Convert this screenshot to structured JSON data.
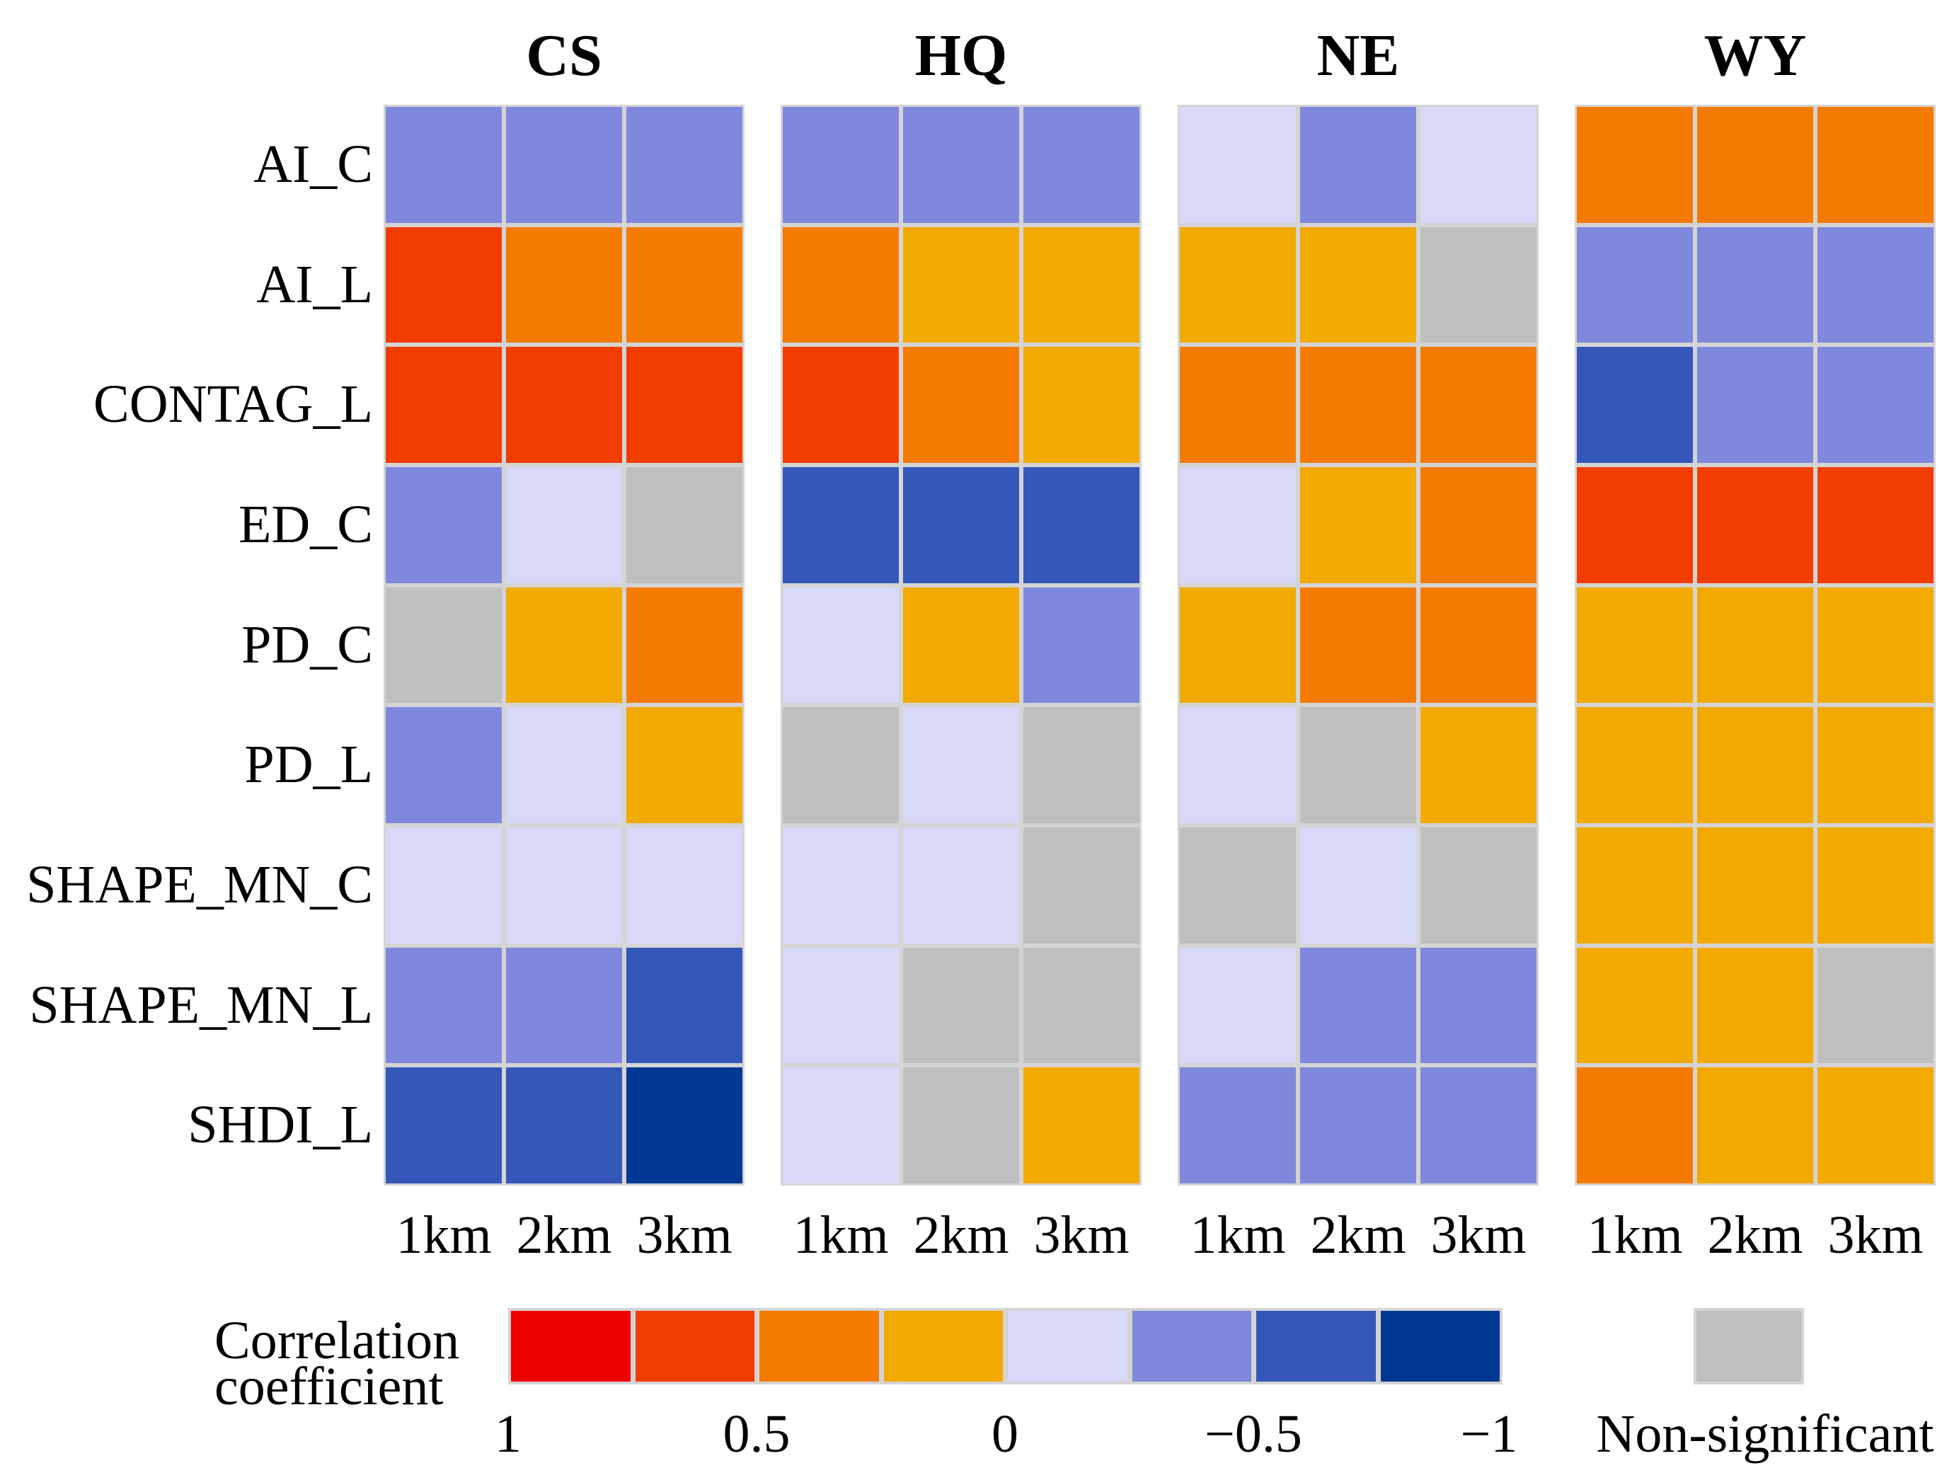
{
  "chart_data": {
    "type": "heatmap",
    "rows": [
      "AI_C",
      "AI_L",
      "CONTAG_L",
      "ED_C",
      "PD_C",
      "PD_L",
      "SHAPE_MN_C",
      "SHAPE_MN_L",
      "SHDI_L"
    ],
    "columns": [
      "1km",
      "2km",
      "3km"
    ],
    "cell_encoding": "legend bin index (0 = 1 to 0.75 ... 7 = -0.75 to -1) or \"ns\" for non-significant",
    "panels": [
      {
        "title": "CS",
        "cells": [
          [
            5,
            5,
            5
          ],
          [
            1,
            2,
            2
          ],
          [
            1,
            1,
            1
          ],
          [
            5,
            4,
            "ns"
          ],
          [
            "ns",
            3,
            2
          ],
          [
            5,
            4,
            3
          ],
          [
            4,
            4,
            4
          ],
          [
            5,
            5,
            6
          ],
          [
            6,
            6,
            7
          ]
        ]
      },
      {
        "title": "HQ",
        "cells": [
          [
            5,
            5,
            5
          ],
          [
            2,
            3,
            3
          ],
          [
            1,
            2,
            3
          ],
          [
            6,
            6,
            6
          ],
          [
            4,
            3,
            5
          ],
          [
            "ns",
            4,
            "ns"
          ],
          [
            4,
            4,
            "ns"
          ],
          [
            4,
            "ns",
            "ns"
          ],
          [
            4,
            "ns",
            3
          ]
        ]
      },
      {
        "title": "NE",
        "cells": [
          [
            4,
            5,
            4
          ],
          [
            3,
            3,
            "ns"
          ],
          [
            2,
            2,
            2
          ],
          [
            4,
            3,
            2
          ],
          [
            3,
            2,
            2
          ],
          [
            4,
            "ns",
            3
          ],
          [
            "ns",
            4,
            "ns"
          ],
          [
            4,
            5,
            5
          ],
          [
            5,
            5,
            5
          ]
        ]
      },
      {
        "title": "WY",
        "cells": [
          [
            2,
            2,
            2
          ],
          [
            5,
            5,
            5
          ],
          [
            6,
            5,
            5
          ],
          [
            1,
            1,
            1
          ],
          [
            3,
            3,
            3
          ],
          [
            3,
            3,
            3
          ],
          [
            3,
            3,
            3
          ],
          [
            3,
            3,
            "ns"
          ],
          [
            2,
            3,
            3
          ]
        ]
      }
    ],
    "legend": {
      "title_lines": [
        "Correlation",
        "coefficient"
      ],
      "bins": [
        {
          "range": [
            1,
            0.75
          ],
          "color": "#f20000"
        },
        {
          "range": [
            0.75,
            0.5
          ],
          "color": "#f23c00"
        },
        {
          "range": [
            0.5,
            0.25
          ],
          "color": "#f47b00"
        },
        {
          "range": [
            0.25,
            0
          ],
          "color": "#f2a900"
        },
        {
          "range": [
            0,
            -0.25
          ],
          "color": "#d8d8f8"
        },
        {
          "range": [
            -0.25,
            -0.5
          ],
          "color": "#7f88dc"
        },
        {
          "range": [
            -0.5,
            -0.75
          ],
          "color": "#3457b9"
        },
        {
          "range": [
            -0.75,
            -1
          ],
          "color": "#003894"
        }
      ],
      "tick_labels": [
        "1",
        "0.5",
        "0",
        "−0.5",
        "−1"
      ],
      "non_significant": {
        "label": "Non-significant",
        "color": "#bfbfbf"
      }
    }
  }
}
